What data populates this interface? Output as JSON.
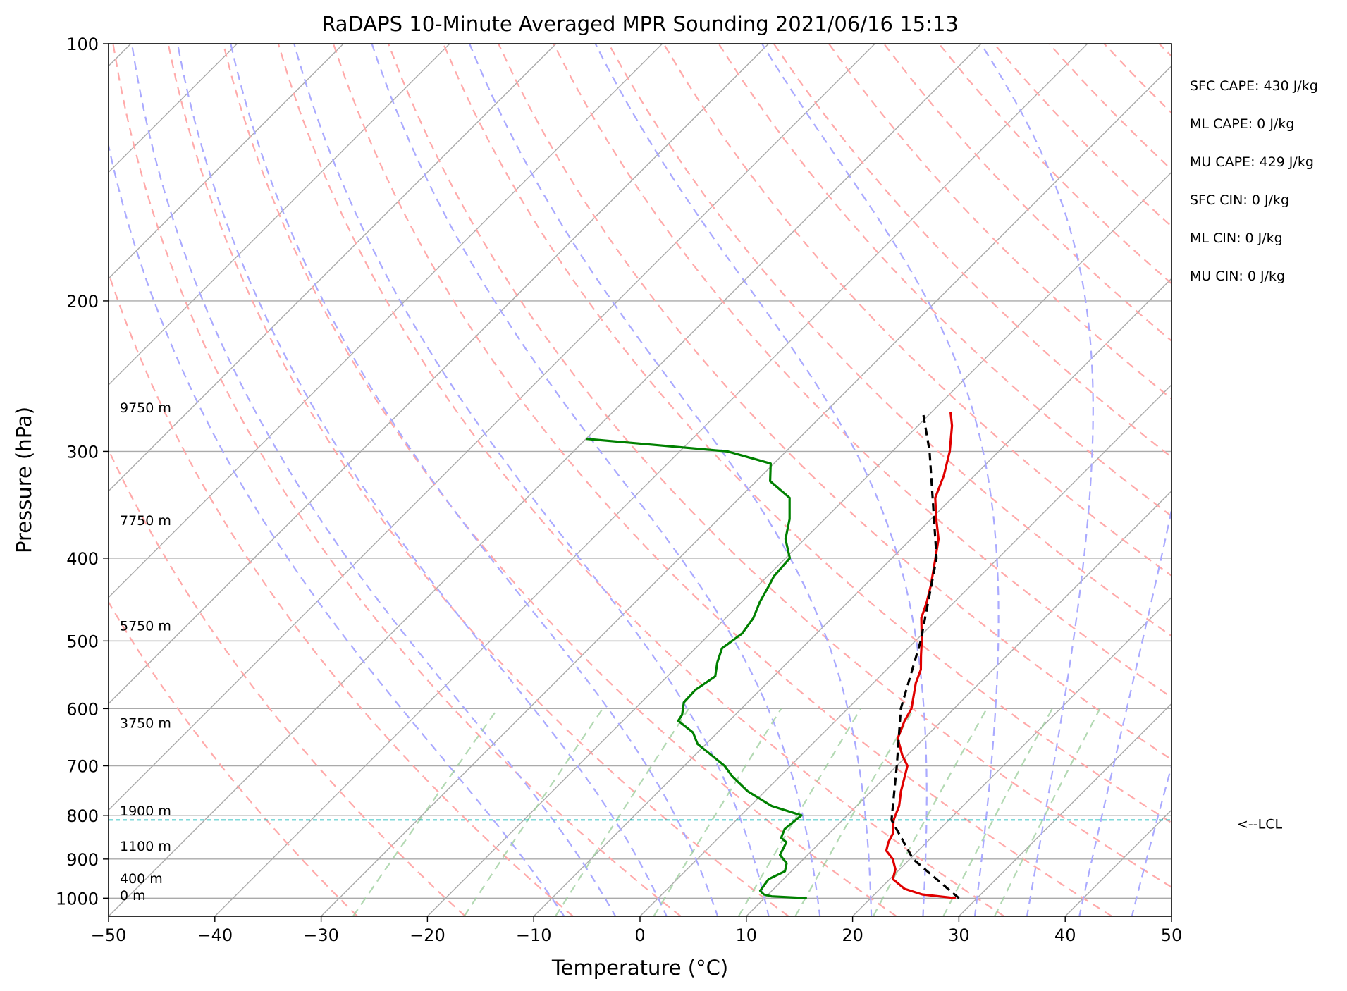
{
  "chart_data": {
    "type": "line",
    "title": "RaDAPS 10-Minute Averaged MPR Sounding 2021/06/16 15:13",
    "xlabel": "Temperature (°C)",
    "ylabel": "Pressure (hPa)",
    "xlim": [
      -50,
      50
    ],
    "ylim": [
      1050,
      100
    ],
    "y_scale": "log",
    "skew_degrees": 45,
    "xticks": [
      -50,
      -40,
      -30,
      -20,
      -10,
      0,
      10,
      20,
      30,
      40,
      50
    ],
    "xtick_labels": [
      "−50",
      "−40",
      "−30",
      "−20",
      "−10",
      "0",
      "10",
      "20",
      "30",
      "40",
      "50"
    ],
    "yticks": [
      100,
      200,
      300,
      400,
      500,
      600,
      700,
      800,
      900,
      1000
    ],
    "ytick_labels": [
      "100",
      "200",
      "300",
      "400",
      "500",
      "600",
      "700",
      "800",
      "900",
      "1000"
    ],
    "grid": true,
    "series": [
      {
        "color": "#e00000",
        "points": [
          [
            1000,
            28.0
          ],
          [
            990,
            24.5
          ],
          [
            975,
            22.3
          ],
          [
            950,
            20.3
          ],
          [
            925,
            19.6
          ],
          [
            900,
            18.4
          ],
          [
            880,
            17.0
          ],
          [
            860,
            16.4
          ],
          [
            840,
            16.0
          ],
          [
            820,
            15.2
          ],
          [
            810,
            14.8
          ],
          [
            780,
            14.0
          ],
          [
            750,
            12.8
          ],
          [
            700,
            11.0
          ],
          [
            680,
            9.5
          ],
          [
            650,
            7.5
          ],
          [
            620,
            6.5
          ],
          [
            600,
            6.0
          ],
          [
            560,
            4.0
          ],
          [
            540,
            3.2
          ],
          [
            520,
            1.9
          ],
          [
            500,
            0.6
          ],
          [
            470,
            -1.6
          ],
          [
            450,
            -2.6
          ],
          [
            430,
            -3.8
          ],
          [
            400,
            -5.9
          ],
          [
            380,
            -7.4
          ],
          [
            360,
            -9.5
          ],
          [
            340,
            -11.6
          ],
          [
            320,
            -12.9
          ],
          [
            300,
            -14.6
          ],
          [
            280,
            -16.8
          ],
          [
            270,
            -18.2
          ]
        ]
      },
      {
        "color": "#008000",
        "points": [
          [
            1000,
            14.0
          ],
          [
            995,
            10.5
          ],
          [
            990,
            9.6
          ],
          [
            980,
            8.9
          ],
          [
            970,
            8.8
          ],
          [
            960,
            8.7
          ],
          [
            950,
            8.6
          ],
          [
            930,
            9.4
          ],
          [
            910,
            8.8
          ],
          [
            890,
            7.4
          ],
          [
            870,
            7.0
          ],
          [
            860,
            6.8
          ],
          [
            850,
            5.9
          ],
          [
            830,
            5.4
          ],
          [
            820,
            5.5
          ],
          [
            800,
            5.7
          ],
          [
            780,
            2.0
          ],
          [
            750,
            -1.6
          ],
          [
            720,
            -4.5
          ],
          [
            700,
            -6.2
          ],
          [
            660,
            -10.8
          ],
          [
            640,
            -12.3
          ],
          [
            620,
            -14.8
          ],
          [
            610,
            -15.0
          ],
          [
            590,
            -16.0
          ],
          [
            570,
            -16.1
          ],
          [
            550,
            -15.5
          ],
          [
            530,
            -16.6
          ],
          [
            510,
            -17.5
          ],
          [
            490,
            -17.0
          ],
          [
            470,
            -17.4
          ],
          [
            450,
            -18.3
          ],
          [
            430,
            -19.0
          ],
          [
            420,
            -19.4
          ],
          [
            400,
            -19.6
          ],
          [
            380,
            -21.8
          ],
          [
            360,
            -23.3
          ],
          [
            340,
            -25.3
          ],
          [
            325,
            -28.7
          ],
          [
            310,
            -30.3
          ],
          [
            300,
            -35.5
          ],
          [
            290,
            -50.0
          ]
        ]
      },
      {
        "color": "#000000",
        "points": [
          [
            1000,
            28.3
          ],
          [
            900,
            20.3
          ],
          [
            810,
            14.6
          ],
          [
            700,
            10.0
          ],
          [
            600,
            5.0
          ],
          [
            500,
            0.5
          ],
          [
            400,
            -5.8
          ],
          [
            300,
            -16.5
          ],
          [
            270,
            -20.8
          ]
        ]
      }
    ],
    "lcl": {
      "pressure": 810,
      "label": "<--LCL",
      "color": "#00b3b3"
    },
    "height_labels": [
      {
        "pressure": 270,
        "label": "9750 m"
      },
      {
        "pressure": 366,
        "label": "7750 m"
      },
      {
        "pressure": 486,
        "label": "5750 m"
      },
      {
        "pressure": 632,
        "label": "3750 m"
      },
      {
        "pressure": 800,
        "label": "1900 m"
      },
      {
        "pressure": 880,
        "label": "1100 m"
      },
      {
        "pressure": 960,
        "label": "400 m"
      },
      {
        "pressure": 1005,
        "label": "0 m"
      }
    ],
    "stats": [
      "SFC CAPE: 430 J/kg",
      "ML CAPE: 0 J/kg",
      "MU CAPE: 429 J/kg",
      "SFC CIN: 0 J/kg",
      "ML CIN: 0 J/kg",
      "MU CIN: 0 J/kg"
    ],
    "reference_lines": {
      "isotherm_color": "#aaaaaa",
      "dry_adiabat_color": "#ffaaaa",
      "moist_adiabat_color": "#aaaaff",
      "mixing_ratio_color": "#99cc99"
    }
  }
}
